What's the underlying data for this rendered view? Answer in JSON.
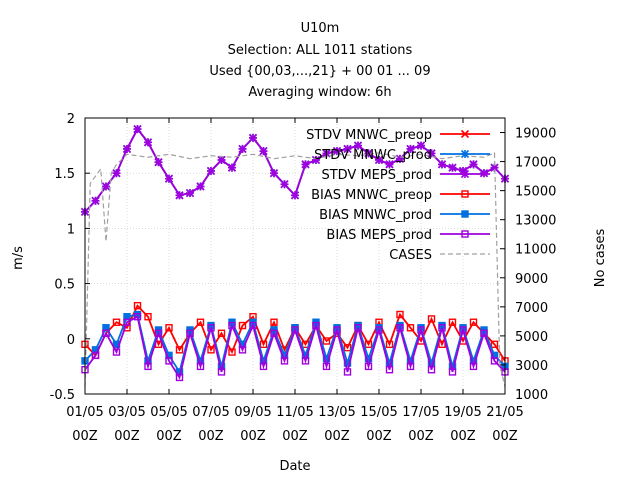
{
  "chart_data": {
    "type": "line",
    "title_lines": [
      "U10m",
      "Selection: ALL   1011 stations",
      "Used {00,03,...,21} + 00 01 ... 09",
      "Averaging window:  6h"
    ],
    "xlabel": "Date",
    "ylabel": "m/s",
    "y2label": "No cases",
    "ylim": [
      -0.5,
      2.0
    ],
    "y2lim": [
      1000,
      20000
    ],
    "grid": true,
    "legend": "top-right",
    "x_ticks": [
      {
        "top": "01/05",
        "bottom": "00Z"
      },
      {
        "top": "03/05",
        "bottom": "00Z"
      },
      {
        "top": "05/05",
        "bottom": "00Z"
      },
      {
        "top": "07/05",
        "bottom": "00Z"
      },
      {
        "top": "09/05",
        "bottom": "00Z"
      },
      {
        "top": "11/05",
        "bottom": "00Z"
      },
      {
        "top": "13/05",
        "bottom": "00Z"
      },
      {
        "top": "15/05",
        "bottom": "00Z"
      },
      {
        "top": "17/05",
        "bottom": "00Z"
      },
      {
        "top": "19/05",
        "bottom": "00Z"
      },
      {
        "top": "21/05",
        "bottom": "00Z"
      }
    ],
    "y_ticks": [
      "-0.5",
      "0",
      "0.5",
      "1",
      "1.5",
      "2"
    ],
    "y2_ticks": [
      "1000",
      "3000",
      "5000",
      "7000",
      "9000",
      "11000",
      "13000",
      "15000",
      "17000",
      "19000"
    ],
    "series": [
      {
        "name": "STDV MNWC_preop",
        "color": "#ff0000",
        "axis": "y",
        "x": [
          0,
          0.5,
          1,
          1.5,
          2,
          2.5,
          3,
          3.5,
          4,
          4.5,
          5,
          5.5,
          6,
          6.5,
          7,
          7.5,
          8,
          8.5,
          9,
          9.5,
          10,
          10.5,
          11,
          11.5,
          12,
          12.5,
          13,
          13.5,
          14,
          14.5,
          15,
          15.5,
          16,
          16.5,
          17,
          17.5,
          18,
          18.5,
          19,
          19.5,
          20
        ],
        "values": [
          1.15,
          1.25,
          1.38,
          1.5,
          1.72,
          1.9,
          1.78,
          1.6,
          1.45,
          1.3,
          1.32,
          1.38,
          1.52,
          1.62,
          1.55,
          1.72,
          1.82,
          1.7,
          1.5,
          1.4,
          1.3,
          1.58,
          1.62,
          1.68,
          1.7,
          1.72,
          1.75,
          1.68,
          1.62,
          1.58,
          1.63,
          1.72,
          1.75,
          1.68,
          1.58,
          1.55,
          1.52,
          1.58,
          1.5,
          1.55,
          1.45
        ]
      },
      {
        "name": "STDV MNWC_prod",
        "color": "#0070e0",
        "axis": "y",
        "x": [
          0,
          0.5,
          1,
          1.5,
          2,
          2.5,
          3,
          3.5,
          4,
          4.5,
          5,
          5.5,
          6,
          6.5,
          7,
          7.5,
          8,
          8.5,
          9,
          9.5,
          10,
          10.5,
          11,
          11.5,
          12,
          12.5,
          13,
          13.5,
          14,
          14.5,
          15,
          15.5,
          16,
          16.5,
          17,
          17.5,
          18,
          18.5,
          19,
          19.5,
          20
        ],
        "values": [
          1.15,
          1.25,
          1.38,
          1.5,
          1.72,
          1.9,
          1.78,
          1.6,
          1.45,
          1.3,
          1.32,
          1.38,
          1.52,
          1.62,
          1.55,
          1.72,
          1.82,
          1.7,
          1.5,
          1.4,
          1.3,
          1.58,
          1.62,
          1.68,
          1.7,
          1.72,
          1.75,
          1.68,
          1.62,
          1.58,
          1.63,
          1.72,
          1.75,
          1.68,
          1.58,
          1.55,
          1.52,
          1.58,
          1.5,
          1.55,
          1.45
        ]
      },
      {
        "name": "STDV MEPS_prod",
        "color": "#a000e0",
        "axis": "y",
        "x": [
          0,
          0.5,
          1,
          1.5,
          2,
          2.5,
          3,
          3.5,
          4,
          4.5,
          5,
          5.5,
          6,
          6.5,
          7,
          7.5,
          8,
          8.5,
          9,
          9.5,
          10,
          10.5,
          11,
          11.5,
          12,
          12.5,
          13,
          13.5,
          14,
          14.5,
          15,
          15.5,
          16,
          16.5,
          17,
          17.5,
          18,
          18.5,
          19,
          19.5,
          20
        ],
        "values": [
          1.15,
          1.25,
          1.38,
          1.5,
          1.72,
          1.9,
          1.78,
          1.6,
          1.45,
          1.3,
          1.32,
          1.38,
          1.52,
          1.62,
          1.55,
          1.72,
          1.82,
          1.7,
          1.5,
          1.4,
          1.3,
          1.58,
          1.62,
          1.68,
          1.7,
          1.72,
          1.75,
          1.68,
          1.62,
          1.58,
          1.63,
          1.72,
          1.75,
          1.68,
          1.58,
          1.55,
          1.52,
          1.58,
          1.5,
          1.55,
          1.45
        ]
      },
      {
        "name": "BIAS MNWC_preop",
        "color": "#ff0000",
        "axis": "y",
        "x": [
          0,
          0.5,
          1,
          1.5,
          2,
          2.5,
          3,
          3.5,
          4,
          4.5,
          5,
          5.5,
          6,
          6.5,
          7,
          7.5,
          8,
          8.5,
          9,
          9.5,
          10,
          10.5,
          11,
          11.5,
          12,
          12.5,
          13,
          13.5,
          14,
          14.5,
          15,
          15.5,
          16,
          16.5,
          17,
          17.5,
          18,
          18.5,
          19,
          19.5,
          20
        ],
        "values": [
          -0.05,
          -0.15,
          0.05,
          0.15,
          0.1,
          0.3,
          0.2,
          -0.05,
          0.1,
          -0.1,
          0.05,
          0.15,
          -0.1,
          0.05,
          -0.12,
          0.12,
          0.2,
          -0.05,
          0.15,
          -0.1,
          0.1,
          -0.05,
          0.12,
          -0.02,
          0.05,
          -0.08,
          0.12,
          -0.05,
          0.15,
          -0.05,
          0.22,
          0.1,
          -0.02,
          0.18,
          -0.05,
          0.15,
          -0.02,
          0.15,
          0.05,
          -0.05,
          -0.2
        ]
      },
      {
        "name": "BIAS MNWC_prod",
        "color": "#0070e0",
        "axis": "y",
        "x": [
          0,
          0.5,
          1,
          1.5,
          2,
          2.5,
          3,
          3.5,
          4,
          4.5,
          5,
          5.5,
          6,
          6.5,
          7,
          7.5,
          8,
          8.5,
          9,
          9.5,
          10,
          10.5,
          11,
          11.5,
          12,
          12.5,
          13,
          13.5,
          14,
          14.5,
          15,
          15.5,
          16,
          16.5,
          17,
          17.5,
          18,
          18.5,
          19,
          19.5,
          20
        ],
        "values": [
          -0.2,
          -0.1,
          0.1,
          -0.05,
          0.2,
          0.22,
          -0.2,
          0.08,
          -0.15,
          -0.3,
          0.08,
          -0.2,
          0.12,
          -0.25,
          0.15,
          -0.05,
          0.15,
          -0.2,
          0.08,
          -0.15,
          0.1,
          -0.15,
          0.15,
          -0.18,
          0.1,
          -0.22,
          0.12,
          -0.18,
          0.1,
          -0.22,
          0.12,
          -0.2,
          0.1,
          -0.22,
          0.12,
          -0.25,
          0.1,
          -0.2,
          0.08,
          -0.15,
          -0.25
        ]
      },
      {
        "name": "BIAS MEPS_prod",
        "color": "#a000e0",
        "axis": "y",
        "x": [
          0,
          0.5,
          1,
          1.5,
          2,
          2.5,
          3,
          3.5,
          4,
          4.5,
          5,
          5.5,
          6,
          6.5,
          7,
          7.5,
          8,
          8.5,
          9,
          9.5,
          10,
          10.5,
          11,
          11.5,
          12,
          12.5,
          13,
          13.5,
          14,
          14.5,
          15,
          15.5,
          16,
          16.5,
          17,
          17.5,
          18,
          18.5,
          19,
          19.5,
          20
        ],
        "values": [
          -0.28,
          -0.15,
          0.05,
          -0.12,
          0.15,
          0.2,
          -0.25,
          0.05,
          -0.2,
          -0.35,
          0.05,
          -0.25,
          0.1,
          -0.3,
          0.12,
          -0.1,
          0.12,
          -0.25,
          0.05,
          -0.2,
          0.08,
          -0.2,
          0.12,
          -0.25,
          0.08,
          -0.3,
          0.1,
          -0.25,
          0.08,
          -0.28,
          0.1,
          -0.25,
          0.08,
          -0.28,
          0.1,
          -0.3,
          0.08,
          -0.25,
          0.05,
          -0.2,
          -0.3
        ]
      },
      {
        "name": "CASES",
        "color": "#a0a0a0",
        "axis": "y2",
        "dashed": true,
        "x": [
          0,
          0.25,
          0.5,
          0.75,
          1,
          1.25,
          1.5,
          2,
          3,
          4,
          5,
          6,
          7,
          8,
          9,
          10,
          11,
          12,
          13,
          14,
          15,
          16,
          17,
          18,
          19,
          19.5,
          19.75,
          20
        ],
        "values": [
          1500,
          15500,
          16000,
          16500,
          11500,
          16200,
          16800,
          17500,
          17300,
          17500,
          17200,
          17400,
          17300,
          17500,
          17200,
          17400,
          17200,
          17500,
          17400,
          17600,
          17300,
          17500,
          17200,
          17400,
          17300,
          17600,
          3000,
          1500
        ]
      }
    ]
  }
}
